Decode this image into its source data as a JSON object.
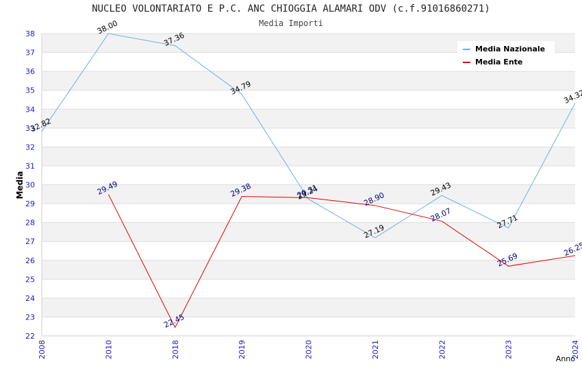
{
  "title": "NUCLEO VOLONTARIATO E P.C. ANC CHIOGGIA ALAMARI ODV (c.f.91016860271)",
  "subtitle": "Media Importi",
  "colors": {
    "nazionale": "#6aaee8",
    "ente": "#e00000",
    "tick": "#1a1acc",
    "grid_band": "#f2f2f2"
  },
  "chart_data": {
    "type": "line",
    "title": "NUCLEO VOLONTARIATO E P.C. ANC CHIOGGIA ALAMARI ODV (c.f.91016860271)",
    "subtitle": "Media Importi",
    "xlabel": "Anno",
    "ylabel": "Media",
    "categories": [
      "2008",
      "2010",
      "2018",
      "2019",
      "2020",
      "2021",
      "2022",
      "2023",
      "2024"
    ],
    "ylim": [
      22,
      38
    ],
    "yticks": [
      "22",
      "23",
      "24",
      "25",
      "26",
      "27",
      "28",
      "29",
      "30",
      "31",
      "32",
      "33",
      "34",
      "35",
      "36",
      "37",
      "38"
    ],
    "grid": true,
    "legend_position": "top-right",
    "series": [
      {
        "name": "Media Nazionale",
        "color": "#6aaee8",
        "label_color": "#000000",
        "values": [
          32.82,
          38.0,
          37.36,
          34.79,
          29.24,
          27.19,
          29.43,
          27.71,
          34.32
        ],
        "labels": [
          "32.82",
          "38.00",
          "37.36",
          "34.79",
          "29.24",
          "27.19",
          "29.43",
          "27.71",
          "34.32"
        ]
      },
      {
        "name": "Media Ente",
        "color": "#e00000",
        "label_color": "#00007a",
        "values": [
          null,
          29.49,
          22.45,
          29.38,
          29.31,
          28.9,
          28.07,
          25.69,
          26.25
        ],
        "labels": [
          "",
          "29.49",
          "22.45",
          "29.38",
          "29.31",
          "28.90",
          "28.07",
          "25.69",
          "26.25"
        ]
      }
    ]
  }
}
